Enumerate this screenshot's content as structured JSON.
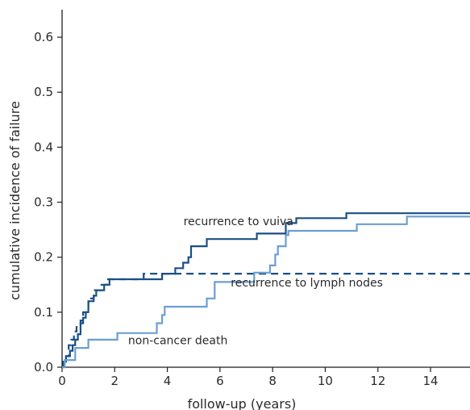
{
  "chart_data": {
    "type": "line",
    "step": true,
    "xlabel": "follow-up (years)",
    "ylabel": "cumulative incidence of failure",
    "xlim": [
      0,
      15.5
    ],
    "ylim": [
      0,
      0.65
    ],
    "x_ticks": [
      0,
      2,
      4,
      6,
      8,
      10,
      12,
      14
    ],
    "x_tick_labels": [
      "0",
      "2",
      "4",
      "6",
      "8",
      "10",
      "12",
      "14"
    ],
    "y_ticks": [
      0,
      0.1,
      0.2,
      0.3,
      0.4,
      0.5,
      0.6
    ],
    "y_tick_labels": [
      "0.0",
      "0.1",
      "0.2",
      "0.3",
      "0.4",
      "0.5",
      "0.6"
    ],
    "grid": false,
    "series": [
      {
        "name": "recurrence to vuiva",
        "color": "#1a4f86",
        "dash": "solid",
        "x": [
          0,
          0.05,
          0.15,
          0.3,
          0.4,
          0.5,
          0.6,
          0.7,
          0.8,
          0.9,
          1.0,
          1.2,
          1.3,
          1.5,
          1.6,
          1.8,
          3.8,
          4.3,
          4.6,
          4.8,
          4.9,
          5.5,
          7.4,
          8.5,
          8.9,
          10.8,
          15.5
        ],
        "y": [
          0,
          0.01,
          0.02,
          0.03,
          0.04,
          0.05,
          0.06,
          0.08,
          0.09,
          0.1,
          0.12,
          0.13,
          0.14,
          0.14,
          0.15,
          0.16,
          0.17,
          0.18,
          0.19,
          0.2,
          0.22,
          0.233,
          0.243,
          0.262,
          0.271,
          0.28,
          0.28
        ]
      },
      {
        "name": "recurrence to lymph nodes",
        "color": "#1a4f86",
        "dash": "dashed",
        "x": [
          0,
          0.05,
          0.15,
          0.25,
          0.35,
          0.45,
          0.55,
          0.7,
          0.8,
          1.0,
          1.2,
          1.5,
          1.7,
          3.1,
          15.5
        ],
        "y": [
          0,
          0.01,
          0.02,
          0.04,
          0.05,
          0.065,
          0.075,
          0.085,
          0.1,
          0.125,
          0.14,
          0.15,
          0.16,
          0.17,
          0.17
        ]
      },
      {
        "name": "non-cancer death",
        "color": "#6a9fd2",
        "dash": "solid",
        "x": [
          0,
          0.1,
          0.5,
          1.0,
          2.1,
          3.6,
          3.8,
          3.9,
          5.5,
          5.8,
          7.3,
          7.9,
          8.1,
          8.2,
          8.5,
          8.6,
          11.2,
          13.1,
          15.5
        ],
        "y": [
          0,
          0.013,
          0.035,
          0.05,
          0.062,
          0.08,
          0.095,
          0.11,
          0.125,
          0.155,
          0.172,
          0.185,
          0.205,
          0.22,
          0.24,
          0.248,
          0.26,
          0.274,
          0.274
        ]
      }
    ],
    "annotations": [
      {
        "text": "recurrence to vuiva",
        "x": 6.7,
        "y": 0.258
      },
      {
        "text": "recurrence to lymph nodes",
        "x": 9.3,
        "y": 0.147
      },
      {
        "text": "non-cancer death",
        "x": 4.4,
        "y": 0.042
      }
    ]
  }
}
